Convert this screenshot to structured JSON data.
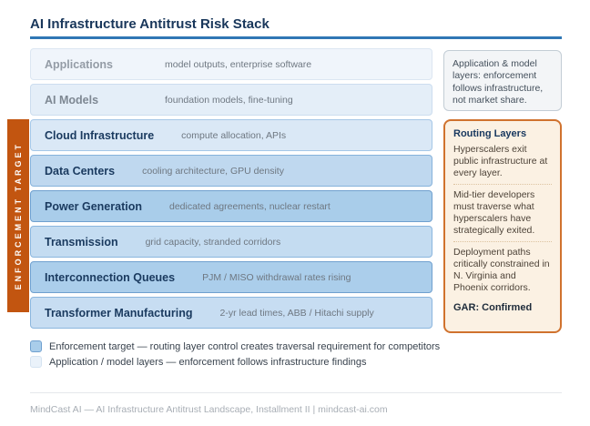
{
  "header": {
    "title": "AI Infrastructure Antitrust Risk Stack"
  },
  "enforcement_band": {
    "label": "ENFORCEMENT TARGET"
  },
  "stack": {
    "layers": [
      {
        "name": "Applications",
        "detail": "model outputs, enterprise software",
        "zone": "application"
      },
      {
        "name": "AI Models",
        "detail": "foundation models, fine-tuning",
        "zone": "application"
      },
      {
        "name": "Cloud Infrastructure",
        "detail": "compute allocation, APIs",
        "zone": "enforcement"
      },
      {
        "name": "Data Centers",
        "detail": "cooling architecture, GPU density",
        "zone": "enforcement"
      },
      {
        "name": "Power Generation",
        "detail": "dedicated agreements, nuclear restart",
        "zone": "enforcement"
      },
      {
        "name": "Transmission",
        "detail": "grid capacity, stranded corridors",
        "zone": "enforcement"
      },
      {
        "name": "Interconnection Queues",
        "detail": "PJM / MISO withdrawal rates rising",
        "zone": "enforcement"
      },
      {
        "name": "Transformer Manufacturing",
        "detail": "2-yr lead times, ABB / Hitachi supply",
        "zone": "enforcement"
      }
    ]
  },
  "annotations": {
    "application_note": "Application & model layers: enforcement follows infrastructure, not market share.",
    "routing": {
      "title": "Routing Layers",
      "points": [
        "Hyperscalers exit public infrastructure at every layer.",
        "Mid-tier developers must traverse what hyperscalers have strategically exited.",
        "Deployment paths critically constrained in N. Virginia and Phoenix corridors."
      ],
      "status": "GAR: Confirmed"
    }
  },
  "legend": {
    "items": [
      {
        "swatch": "enforcement",
        "label": "Enforcement target — routing layer control creates traversal requirement for competitors"
      },
      {
        "swatch": "application",
        "label": "Application / model layers — enforcement follows infrastructure findings"
      }
    ]
  },
  "footer": {
    "text": "MindCast AI — AI Infrastructure Antitrust Landscape, Installment II | mindcast-ai.com"
  },
  "colors": {
    "enforcement_band_orange": "#C25510",
    "routing_box_border": "#D0722E",
    "routing_box_bg": "#FBF1E3",
    "deep_layer_blue": "#A9CDEA",
    "light_layer_blue": "#EAF2FA",
    "title_navy": "#18365A",
    "title_rule_blue": "#3077B5"
  }
}
